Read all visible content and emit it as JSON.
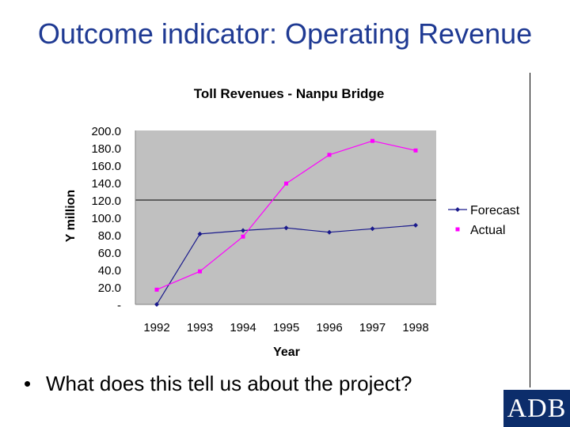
{
  "slide": {
    "title": "Outcome indicator: Operating Revenue",
    "bullet": "What does this tell us about the project?",
    "logo_text": "ADB"
  },
  "chart_data": {
    "type": "line",
    "title": "Toll Revenues - Nanpu Bridge",
    "xlabel": "Year",
    "ylabel": "Y million",
    "categories": [
      "1992",
      "1993",
      "1994",
      "1995",
      "1996",
      "1997",
      "1998"
    ],
    "yticks": [
      "-",
      "20.0",
      "40.0",
      "60.0",
      "80.0",
      "100.0",
      "120.0",
      "140.0",
      "160.0",
      "180.0",
      "200.0"
    ],
    "ylim": [
      0,
      200
    ],
    "reference_line": 120,
    "plot_background": "#c0c0c0",
    "legend_position": "right",
    "series": [
      {
        "name": "Forecast",
        "color": "#1a1a8c",
        "marker": "diamond",
        "line": true,
        "values": [
          0,
          81,
          85,
          88,
          83,
          87,
          91
        ]
      },
      {
        "name": "Actual",
        "color": "#ff00ff",
        "marker": "square",
        "line": true,
        "values": [
          17,
          38,
          78,
          139,
          172,
          188,
          177
        ]
      }
    ]
  }
}
